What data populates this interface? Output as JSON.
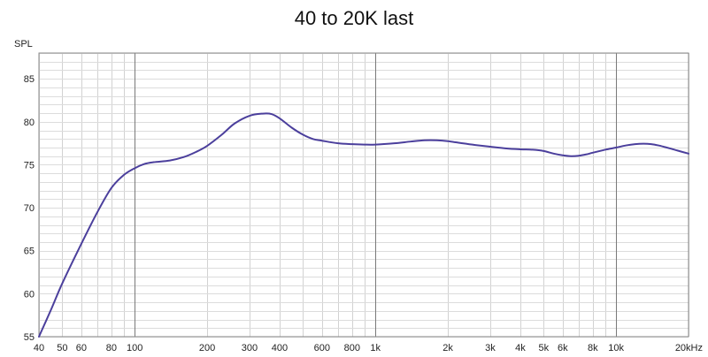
{
  "chart_data": {
    "type": "line",
    "title": "40 to 20K last",
    "ylabel": "SPL",
    "xlabel": "",
    "xscale": "log",
    "xlim": [
      40,
      20000
    ],
    "ylim": [
      55,
      88
    ],
    "grid": true,
    "x_major_ticks": [
      {
        "value": 40,
        "label": "40"
      },
      {
        "value": 50,
        "label": "50"
      },
      {
        "value": 60,
        "label": "60"
      },
      {
        "value": 80,
        "label": "80"
      },
      {
        "value": 100,
        "label": "100"
      },
      {
        "value": 200,
        "label": "200"
      },
      {
        "value": 300,
        "label": "300"
      },
      {
        "value": 400,
        "label": "400"
      },
      {
        "value": 600,
        "label": "600"
      },
      {
        "value": 800,
        "label": "800"
      },
      {
        "value": 1000,
        "label": "1k"
      },
      {
        "value": 2000,
        "label": "2k"
      },
      {
        "value": 3000,
        "label": "3k"
      },
      {
        "value": 4000,
        "label": "4k"
      },
      {
        "value": 5000,
        "label": "5k"
      },
      {
        "value": 6000,
        "label": "6k"
      },
      {
        "value": 8000,
        "label": "8k"
      },
      {
        "value": 10000,
        "label": "10k"
      },
      {
        "value": 20000,
        "label": "20kHz"
      }
    ],
    "y_ticks": [
      55,
      60,
      65,
      70,
      75,
      80,
      85
    ],
    "series": [
      {
        "color": "#4b3f9c",
        "x": [
          40,
          45,
          50,
          60,
          70,
          80,
          90,
          100,
          110,
          120,
          140,
          160,
          180,
          200,
          230,
          260,
          300,
          340,
          370,
          400,
          450,
          500,
          550,
          600,
          700,
          800,
          900,
          1000,
          1200,
          1400,
          1600,
          1800,
          2000,
          2300,
          2600,
          3000,
          3500,
          4000,
          4500,
          5000,
          5500,
          6000,
          6500,
          7000,
          7500,
          8000,
          9000,
          10000,
          11000,
          12000,
          13000,
          14000,
          15000,
          16000,
          17000,
          18000,
          20000
        ],
        "y": [
          55.0,
          58.2,
          61.2,
          65.8,
          69.5,
          72.3,
          73.8,
          74.6,
          75.1,
          75.3,
          75.5,
          75.9,
          76.5,
          77.2,
          78.5,
          79.8,
          80.7,
          80.95,
          80.9,
          80.4,
          79.3,
          78.5,
          78.0,
          77.8,
          77.5,
          77.4,
          77.35,
          77.35,
          77.5,
          77.7,
          77.85,
          77.85,
          77.75,
          77.5,
          77.3,
          77.1,
          76.9,
          76.8,
          76.75,
          76.6,
          76.3,
          76.1,
          76.0,
          76.05,
          76.2,
          76.4,
          76.75,
          77.0,
          77.25,
          77.4,
          77.45,
          77.4,
          77.25,
          77.05,
          76.85,
          76.65,
          76.3
        ]
      }
    ]
  }
}
